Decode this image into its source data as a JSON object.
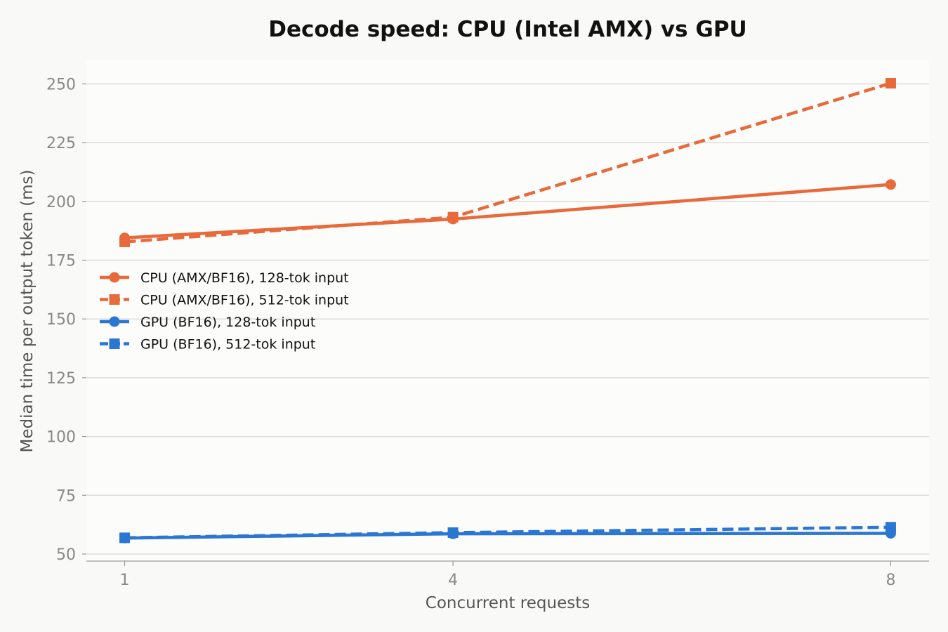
{
  "chart_data": {
    "type": "line",
    "title": "Decode speed: CPU (Intel AMX) vs GPU",
    "xlabel": "Concurrent requests",
    "ylabel": "Median time per output token (ms)",
    "x": [
      1,
      4,
      8
    ],
    "x_ticks": [
      1,
      4,
      8
    ],
    "y_ticks": [
      50,
      75,
      100,
      125,
      150,
      175,
      200,
      225,
      250
    ],
    "xlim": [
      0.65,
      8.35
    ],
    "ylim": [
      47,
      260
    ],
    "grid": "horizontal",
    "legend_position": "center-left",
    "colors": {
      "cpu": "#e8693a",
      "gpu": "#2b76d2",
      "grid": "#dddddd",
      "plot_bg": "#fcfcfb",
      "page_bg": "#f9f9f8"
    },
    "series": [
      {
        "name": "CPU (AMX/BF16), 128-tok input",
        "values": [
          184.5,
          192.5,
          207.2
        ],
        "color": "#e8693a",
        "dash": "solid",
        "marker": "circle"
      },
      {
        "name": "CPU (AMX/BF16), 512-tok input",
        "values": [
          182.8,
          193.3,
          250.3
        ],
        "color": "#e8693a",
        "dash": "dashed",
        "marker": "square"
      },
      {
        "name": "GPU (BF16), 128-tok input",
        "values": [
          56.8,
          58.6,
          58.8
        ],
        "color": "#2b76d2",
        "dash": "solid",
        "marker": "circle"
      },
      {
        "name": "GPU (BF16), 512-tok input",
        "values": [
          56.9,
          59.1,
          61.4
        ],
        "color": "#2b76d2",
        "dash": "dashed",
        "marker": "square"
      }
    ]
  }
}
